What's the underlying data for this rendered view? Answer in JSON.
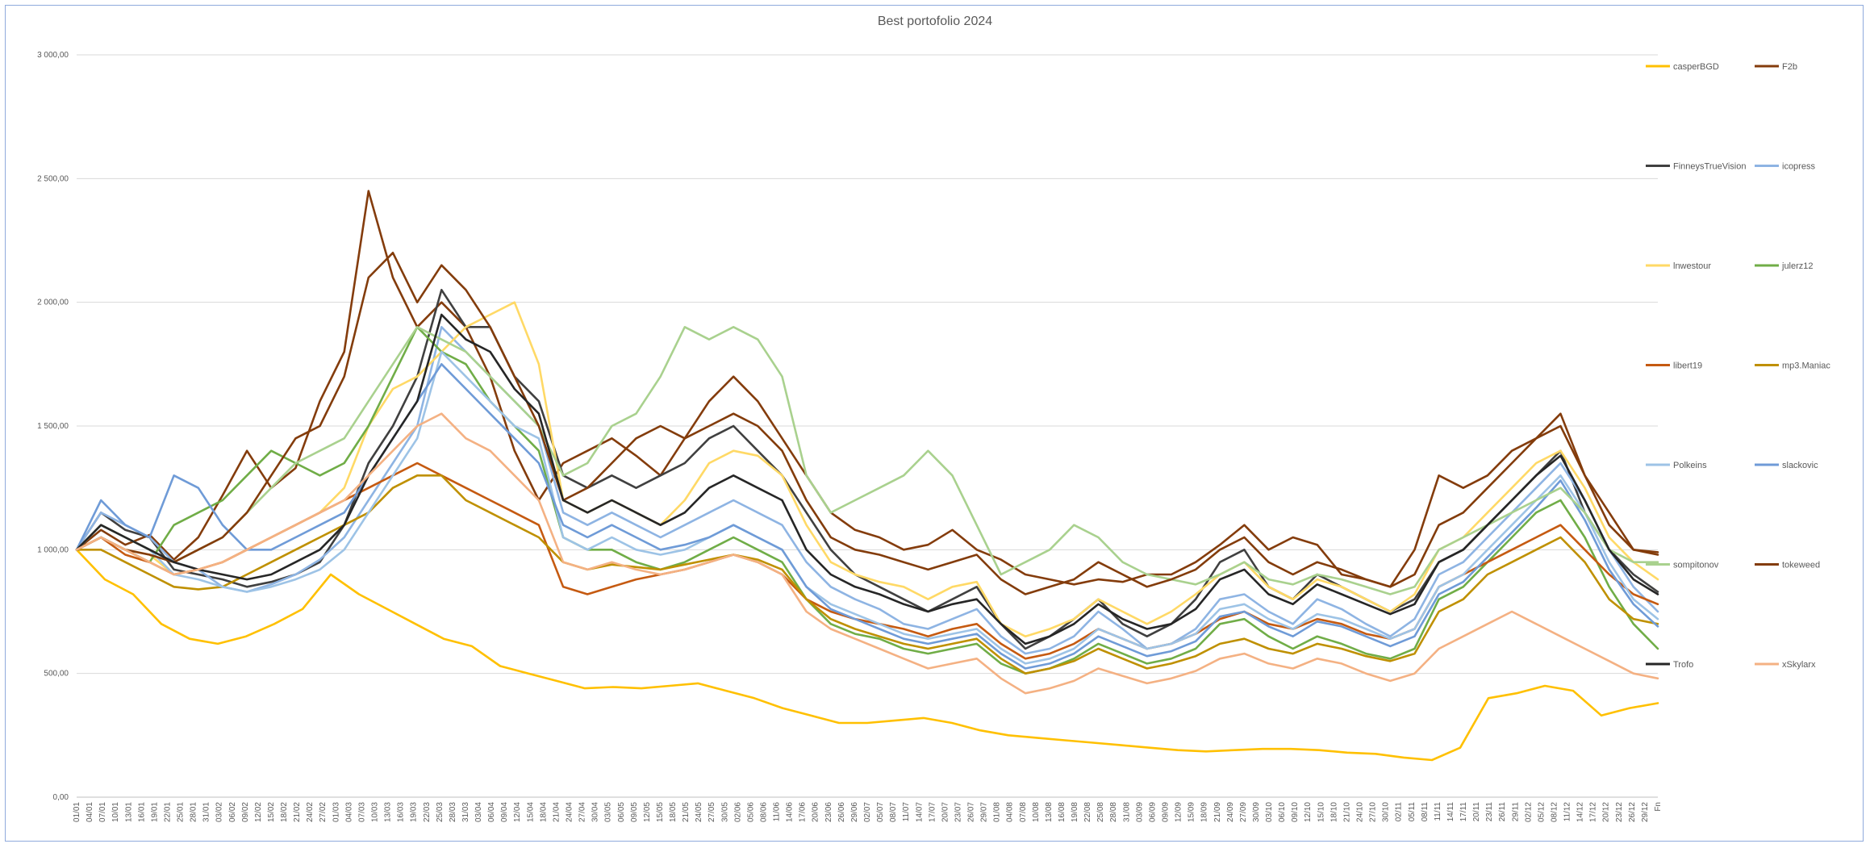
{
  "chart_data": {
    "type": "line",
    "title": "Best portofolio 2024",
    "xlabel": "",
    "ylabel": "",
    "ylim": [
      0,
      3000
    ],
    "yticks": [
      "0,00",
      "500,00",
      "1 000,00",
      "1 500,00",
      "2 000,00",
      "2 500,00",
      "3 000,00"
    ],
    "grid": true,
    "legend_position": "right",
    "x_tick_labels": [
      "01/01",
      "04/01",
      "07/01",
      "10/01",
      "13/01",
      "16/01",
      "19/01",
      "22/01",
      "25/01",
      "28/01",
      "31/01",
      "03/02",
      "06/02",
      "09/02",
      "12/02",
      "15/02",
      "18/02",
      "21/02",
      "24/02",
      "27/02",
      "01/03",
      "04/03",
      "07/03",
      "10/03",
      "13/03",
      "16/03",
      "19/03",
      "22/03",
      "25/03",
      "28/03",
      "31/03",
      "03/04",
      "06/04",
      "09/04",
      "12/04",
      "15/04",
      "18/04",
      "21/04",
      "24/04",
      "27/04",
      "30/04",
      "03/05",
      "06/05",
      "09/05",
      "12/05",
      "15/05",
      "18/05",
      "21/05",
      "24/05",
      "27/05",
      "30/05",
      "02/06",
      "05/06",
      "08/06",
      "11/06",
      "14/06",
      "17/06",
      "20/06",
      "23/06",
      "26/06",
      "29/06",
      "02/07",
      "05/07",
      "08/07",
      "11/07",
      "14/07",
      "17/07",
      "20/07",
      "23/07",
      "26/07",
      "29/07",
      "01/08",
      "04/08",
      "07/08",
      "10/08",
      "13/08",
      "16/08",
      "19/08",
      "22/08",
      "25/08",
      "28/08",
      "31/08",
      "03/09",
      "06/09",
      "09/09",
      "12/09",
      "15/09",
      "18/09",
      "21/09",
      "24/09",
      "27/09",
      "30/09",
      "03/10",
      "06/10",
      "09/10",
      "12/10",
      "15/10",
      "18/10",
      "21/10",
      "24/10",
      "27/10",
      "30/10",
      "02/11",
      "05/11",
      "08/11",
      "11/11",
      "14/11",
      "17/11",
      "20/11",
      "23/11",
      "26/11",
      "29/11",
      "02/12",
      "05/12",
      "08/12",
      "11/12",
      "14/12",
      "17/12",
      "20/12",
      "23/12",
      "26/12",
      "29/12",
      "Fn"
    ],
    "series": [
      {
        "name": "casperBGD",
        "color": "#ffc000",
        "values": [
          1000,
          880,
          820,
          700,
          640,
          620,
          650,
          700,
          760,
          900,
          820,
          760,
          700,
          640,
          610,
          530,
          500,
          470,
          440,
          445,
          440,
          450,
          460,
          430,
          400,
          360,
          330,
          300,
          300,
          310,
          320,
          300,
          270,
          250,
          240,
          230,
          220,
          210,
          200,
          190,
          185,
          190,
          195,
          195,
          190,
          180,
          175,
          160,
          150,
          200,
          400,
          420,
          450,
          430,
          330,
          360,
          380
        ]
      },
      {
        "name": "F2b",
        "color": "#843c0c",
        "values": [
          1000,
          1080,
          1020,
          1060,
          960,
          1050,
          1220,
          1400,
          1250,
          1330,
          1600,
          1800,
          2450,
          2100,
          1900,
          2000,
          1900,
          1700,
          1400,
          1200,
          1350,
          1400,
          1450,
          1380,
          1300,
          1450,
          1600,
          1700,
          1600,
          1450,
          1300,
          1150,
          1080,
          1050,
          1000,
          1020,
          1080,
          1000,
          960,
          900,
          880,
          860,
          880,
          870,
          900,
          900,
          950,
          1020,
          1100,
          1000,
          1050,
          1020,
          900,
          880,
          850,
          1000,
          1300,
          1250,
          1300,
          1400,
          1450,
          1550,
          1300,
          1150,
          1000,
          990
        ]
      },
      {
        "name": "FinneysTrueVision",
        "color": "#404040",
        "values": [
          1000,
          1150,
          1080,
          1050,
          920,
          900,
          880,
          850,
          870,
          900,
          950,
          1100,
          1350,
          1500,
          1700,
          2050,
          1900,
          1900,
          1700,
          1600,
          1300,
          1250,
          1300,
          1250,
          1300,
          1350,
          1450,
          1500,
          1400,
          1300,
          1150,
          1000,
          900,
          850,
          800,
          750,
          800,
          850,
          700,
          600,
          650,
          720,
          800,
          700,
          650,
          700,
          800,
          950,
          1000,
          850,
          800,
          900,
          850,
          800,
          750,
          800,
          950,
          1000,
          1100,
          1200,
          1300,
          1400,
          1150,
          1000,
          900,
          830
        ]
      },
      {
        "name": "icopress",
        "color": "#8eb4e3",
        "values": [
          1000,
          1150,
          1100,
          1050,
          950,
          920,
          850,
          830,
          860,
          900,
          960,
          1050,
          1200,
          1350,
          1500,
          1900,
          1800,
          1700,
          1600,
          1500,
          1150,
          1100,
          1150,
          1100,
          1050,
          1100,
          1150,
          1200,
          1150,
          1100,
          950,
          850,
          800,
          760,
          700,
          680,
          720,
          760,
          650,
          580,
          600,
          650,
          750,
          680,
          600,
          620,
          680,
          800,
          820,
          750,
          700,
          800,
          760,
          700,
          650,
          720,
          900,
          950,
          1050,
          1150,
          1250,
          1350,
          1200,
          1000,
          850,
          750
        ]
      },
      {
        "name": "lnwestour",
        "color": "#ffd966",
        "values": [
          1000,
          1050,
          1000,
          980,
          900,
          920,
          950,
          1000,
          1050,
          1100,
          1150,
          1250,
          1500,
          1650,
          1700,
          1800,
          1900,
          1950,
          2000,
          1750,
          1200,
          1150,
          1200,
          1150,
          1100,
          1200,
          1350,
          1400,
          1380,
          1300,
          1100,
          950,
          900,
          870,
          850,
          800,
          850,
          870,
          700,
          650,
          680,
          720,
          800,
          750,
          700,
          750,
          820,
          900,
          950,
          850,
          800,
          880,
          850,
          800,
          750,
          820,
          1000,
          1050,
          1150,
          1250,
          1350,
          1400,
          1250,
          1050,
          950,
          880
        ]
      },
      {
        "name": "julerz12",
        "color": "#70ad47",
        "values": [
          1000,
          1050,
          1000,
          950,
          1100,
          1150,
          1200,
          1300,
          1400,
          1350,
          1300,
          1350,
          1500,
          1700,
          1900,
          1800,
          1750,
          1600,
          1500,
          1400,
          1050,
          1000,
          1000,
          950,
          920,
          950,
          1000,
          1050,
          1000,
          950,
          800,
          700,
          660,
          640,
          600,
          580,
          600,
          620,
          540,
          500,
          520,
          560,
          620,
          580,
          540,
          560,
          600,
          700,
          720,
          650,
          600,
          650,
          620,
          580,
          560,
          600,
          800,
          850,
          950,
          1050,
          1150,
          1200,
          1050,
          850,
          700,
          600
        ]
      },
      {
        "name": "libert19",
        "color": "#c55a11",
        "values": [
          1000,
          1050,
          980,
          950,
          900,
          920,
          950,
          1000,
          1050,
          1100,
          1150,
          1200,
          1250,
          1300,
          1350,
          1300,
          1250,
          1200,
          1150,
          1100,
          850,
          820,
          850,
          880,
          900,
          920,
          950,
          980,
          950,
          900,
          800,
          750,
          720,
          700,
          680,
          650,
          680,
          700,
          620,
          560,
          580,
          620,
          680,
          640,
          600,
          620,
          660,
          720,
          750,
          700,
          680,
          720,
          700,
          660,
          640,
          680,
          850,
          900,
          950,
          1000,
          1050,
          1100,
          1000,
          900,
          820,
          780
        ]
      },
      {
        "name": "mp3.Maniac",
        "color": "#bf9000",
        "values": [
          1000,
          1000,
          950,
          900,
          850,
          840,
          850,
          900,
          950,
          1000,
          1050,
          1100,
          1150,
          1250,
          1300,
          1300,
          1200,
          1150,
          1100,
          1050,
          950,
          920,
          940,
          930,
          920,
          940,
          960,
          980,
          960,
          920,
          800,
          720,
          680,
          650,
          620,
          600,
          620,
          640,
          560,
          500,
          520,
          550,
          600,
          560,
          520,
          540,
          570,
          620,
          640,
          600,
          580,
          620,
          600,
          570,
          550,
          580,
          750,
          800,
          900,
          950,
          1000,
          1050,
          950,
          800,
          720,
          700
        ]
      },
      {
        "name": "Polkeins",
        "color": "#9dc3e6",
        "values": [
          1000,
          1100,
          1050,
          1000,
          900,
          880,
          850,
          830,
          850,
          880,
          920,
          1000,
          1150,
          1300,
          1450,
          1800,
          1700,
          1600,
          1500,
          1450,
          1050,
          1000,
          1050,
          1000,
          980,
          1000,
          1050,
          1100,
          1050,
          1000,
          850,
          780,
          740,
          700,
          660,
          640,
          660,
          680,
          600,
          540,
          560,
          600,
          680,
          640,
          600,
          620,
          660,
          760,
          780,
          720,
          680,
          740,
          720,
          680,
          640,
          680,
          850,
          900,
          1000,
          1100,
          1200,
          1300,
          1150,
          950,
          800,
          720
        ]
      },
      {
        "name": "slackovic",
        "color": "#6f9bd7",
        "values": [
          1000,
          1200,
          1100,
          1050,
          1300,
          1250,
          1100,
          1000,
          1000,
          1050,
          1100,
          1150,
          1300,
          1450,
          1600,
          1750,
          1650,
          1550,
          1450,
          1350,
          1100,
          1050,
          1100,
          1050,
          1000,
          1020,
          1050,
          1100,
          1050,
          1000,
          850,
          760,
          720,
          680,
          640,
          620,
          640,
          660,
          580,
          520,
          540,
          580,
          650,
          610,
          570,
          590,
          630,
          730,
          750,
          690,
          650,
          710,
          690,
          650,
          610,
          650,
          820,
          870,
          970,
          1070,
          1170,
          1280,
          1120,
          920,
          780,
          690
        ]
      },
      {
        "name": "sompitonov",
        "color": "#a9d18e",
        "values": [
          1000,
          1100,
          1050,
          1000,
          950,
          1000,
          1050,
          1150,
          1250,
          1350,
          1400,
          1450,
          1600,
          1750,
          1900,
          1850,
          1800,
          1700,
          1600,
          1500,
          1300,
          1350,
          1500,
          1550,
          1700,
          1900,
          1850,
          1900,
          1850,
          1700,
          1300,
          1150,
          1200,
          1250,
          1300,
          1400,
          1300,
          1100,
          900,
          950,
          1000,
          1100,
          1050,
          950,
          900,
          880,
          860,
          900,
          950,
          880,
          860,
          900,
          880,
          850,
          820,
          850,
          1000,
          1050,
          1100,
          1150,
          1200,
          1250,
          1150,
          1000,
          950,
          950
        ]
      },
      {
        "name": "tokeweed",
        "color": "#833c0b",
        "values": [
          1000,
          1050,
          1000,
          980,
          950,
          1000,
          1050,
          1150,
          1300,
          1450,
          1500,
          1700,
          2100,
          2200,
          2000,
          2150,
          2050,
          1900,
          1700,
          1500,
          1200,
          1250,
          1350,
          1450,
          1500,
          1450,
          1500,
          1550,
          1500,
          1400,
          1200,
          1050,
          1000,
          980,
          950,
          920,
          950,
          980,
          880,
          820,
          850,
          880,
          950,
          900,
          850,
          880,
          920,
          1000,
          1050,
          950,
          900,
          950,
          920,
          880,
          850,
          900,
          1100,
          1150,
          1250,
          1350,
          1450,
          1500,
          1300,
          1100,
          1000,
          980
        ]
      },
      {
        "name": "Trofo",
        "color": "#262626",
        "values": [
          1000,
          1100,
          1050,
          1000,
          950,
          920,
          900,
          880,
          900,
          950,
          1000,
          1100,
          1300,
          1450,
          1600,
          1950,
          1850,
          1800,
          1650,
          1550,
          1200,
          1150,
          1200,
          1150,
          1100,
          1150,
          1250,
          1300,
          1250,
          1200,
          1000,
          900,
          850,
          820,
          780,
          750,
          780,
          800,
          700,
          620,
          650,
          700,
          780,
          720,
          680,
          700,
          760,
          880,
          920,
          820,
          780,
          860,
          820,
          780,
          740,
          780,
          950,
          1000,
          1100,
          1200,
          1300,
          1380,
          1200,
          1000,
          880,
          820
        ]
      },
      {
        "name": "xSkylarx",
        "color": "#f4b183",
        "values": [
          1000,
          1050,
          1000,
          950,
          900,
          920,
          950,
          1000,
          1050,
          1100,
          1150,
          1200,
          1300,
          1400,
          1500,
          1550,
          1450,
          1400,
          1300,
          1200,
          950,
          920,
          950,
          920,
          900,
          920,
          950,
          980,
          950,
          900,
          750,
          680,
          640,
          600,
          560,
          520,
          540,
          560,
          480,
          420,
          440,
          470,
          520,
          490,
          460,
          480,
          510,
          560,
          580,
          540,
          520,
          560,
          540,
          500,
          470,
          500,
          600,
          650,
          700,
          750,
          700,
          650,
          600,
          550,
          500,
          480
        ]
      }
    ]
  }
}
